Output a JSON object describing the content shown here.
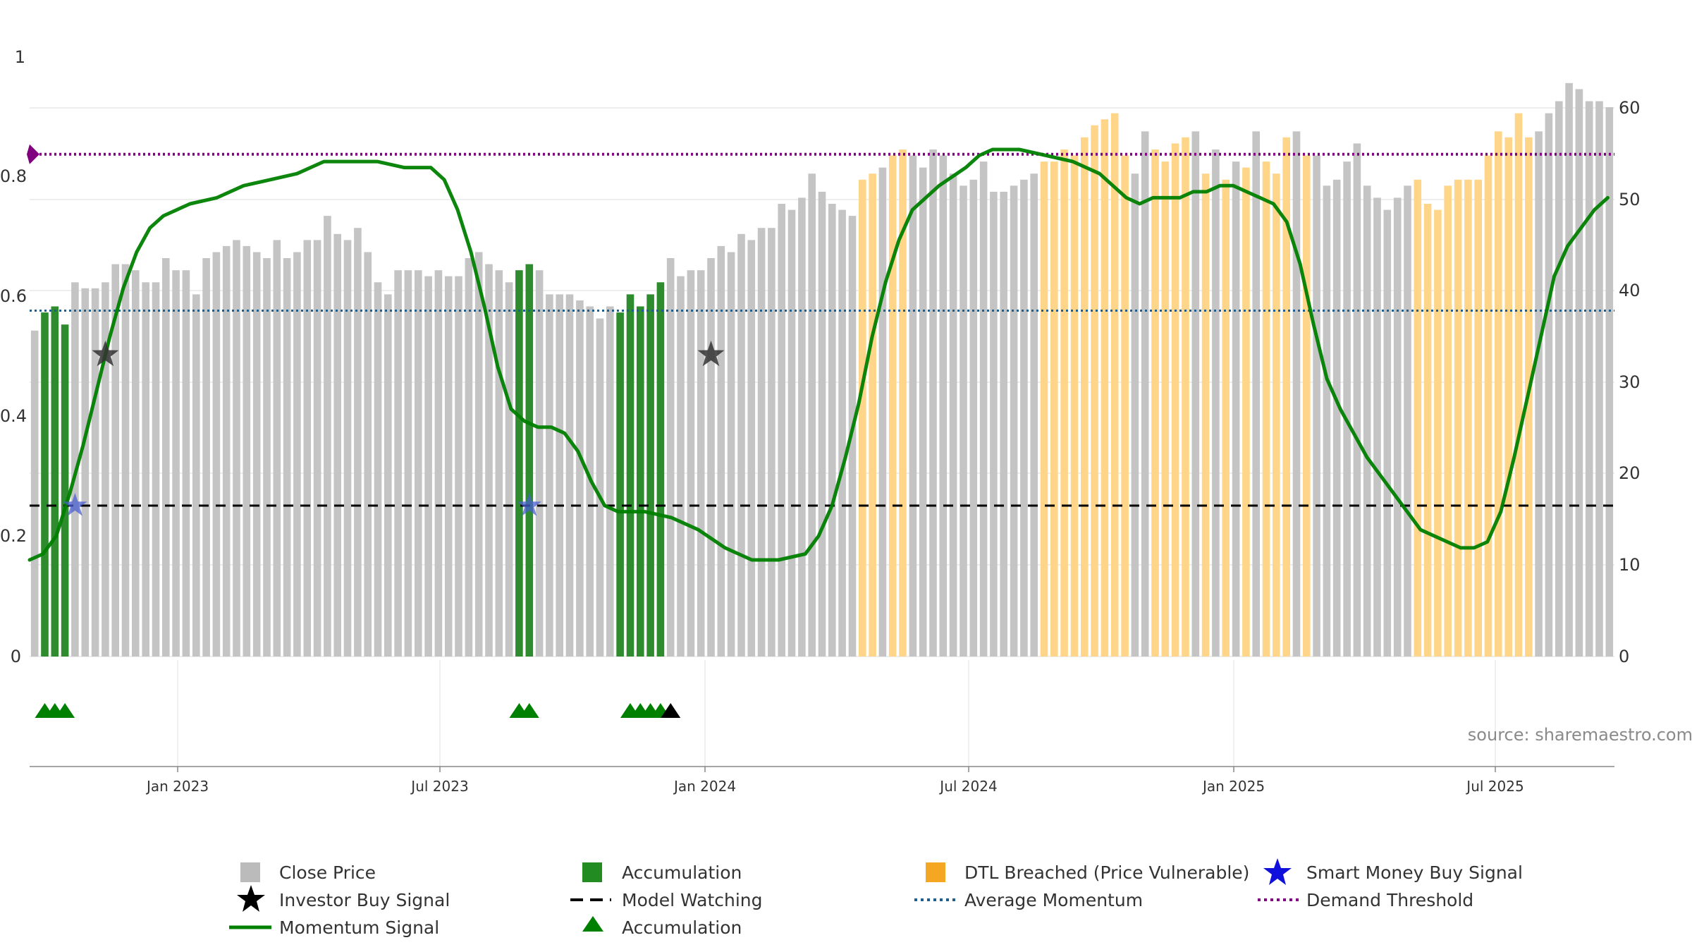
{
  "chart_data": {
    "type": "bar",
    "title": "",
    "source": "source: sharemaestro.com",
    "left_axis": {
      "ticks": [
        "0",
        "0.2",
        "0.4",
        "0.6",
        "0.8",
        "1"
      ],
      "range": [
        0,
        1
      ]
    },
    "right_axis": {
      "ticks": [
        "0",
        "10",
        "20",
        "30",
        "40",
        "50",
        "60"
      ],
      "range": [
        0,
        60
      ]
    },
    "x_axis": {
      "ticks": [
        "Jan 2023",
        "Jul 2023",
        "Jan 2024",
        "Jul 2024",
        "Jan 2025",
        "Jul 2025"
      ]
    },
    "period_start": "2022-09-12",
    "reference_lines": {
      "demand_threshold": 0.832,
      "average_momentum": 0.573,
      "model_watching": 0.25
    },
    "close_price": {
      "bars": [
        0.54,
        0.57,
        0.58,
        0.55,
        0.62,
        0.61,
        0.61,
        0.62,
        0.65,
        0.65,
        0.64,
        0.62,
        0.62,
        0.66,
        0.64,
        0.64,
        0.6,
        0.66,
        0.67,
        0.68,
        0.69,
        0.68,
        0.67,
        0.66,
        0.69,
        0.66,
        0.67,
        0.69,
        0.69,
        0.73,
        0.7,
        0.69,
        0.71,
        0.67,
        0.62,
        0.6,
        0.64,
        0.64,
        0.64,
        0.63,
        0.64,
        0.63,
        0.63,
        0.66,
        0.67,
        0.65,
        0.64,
        0.62,
        0.64,
        0.65,
        0.64,
        0.6,
        0.6,
        0.6,
        0.59,
        0.58,
        0.56,
        0.58,
        0.57,
        0.6,
        0.58,
        0.6,
        0.62,
        0.66,
        0.63,
        0.64,
        0.64,
        0.66,
        0.68,
        0.67,
        0.7,
        0.69,
        0.71,
        0.71,
        0.75,
        0.74,
        0.76,
        0.8,
        0.77,
        0.75,
        0.74,
        0.73,
        0.79,
        0.8,
        0.81,
        0.83,
        0.84,
        0.83,
        0.81,
        0.84,
        0.83,
        0.8,
        0.78,
        0.79,
        0.82,
        0.77,
        0.77,
        0.78,
        0.79,
        0.8,
        0.82,
        0.82,
        0.84,
        0.83,
        0.86,
        0.88,
        0.89,
        0.9,
        0.83,
        0.8,
        0.87,
        0.84,
        0.82,
        0.85,
        0.86,
        0.87,
        0.8,
        0.84,
        0.79,
        0.82,
        0.81,
        0.87,
        0.82,
        0.8,
        0.86,
        0.87,
        0.83,
        0.83,
        0.78,
        0.79,
        0.82,
        0.85,
        0.78,
        0.76,
        0.74,
        0.76,
        0.78,
        0.79,
        0.75,
        0.74,
        0.78,
        0.79,
        0.79,
        0.79,
        0.83,
        0.87,
        0.86,
        0.9,
        0.86,
        0.87,
        0.9,
        0.92,
        0.95,
        0.94,
        0.92,
        0.92,
        0.91
      ],
      "accumulation_bar_indices": [
        1,
        2,
        3,
        48,
        49,
        58,
        59,
        60,
        61,
        62
      ],
      "dtl_breached_bar_indices": [
        82,
        83,
        85,
        86,
        100,
        101,
        102,
        103,
        104,
        105,
        106,
        107,
        108,
        111,
        112,
        113,
        114,
        116,
        118,
        120,
        122,
        123,
        124,
        126,
        137,
        138,
        139,
        140,
        141,
        142,
        143,
        144,
        145,
        146,
        147,
        148
      ]
    },
    "momentum_signal": [
      [
        0.0,
        0.16
      ],
      [
        0.01,
        0.17
      ],
      [
        0.02,
        0.2
      ],
      [
        0.03,
        0.27
      ],
      [
        0.04,
        0.35
      ],
      [
        0.05,
        0.44
      ],
      [
        0.06,
        0.53
      ],
      [
        0.07,
        0.61
      ],
      [
        0.08,
        0.67
      ],
      [
        0.09,
        0.71
      ],
      [
        0.1,
        0.73
      ],
      [
        0.12,
        0.75
      ],
      [
        0.14,
        0.76
      ],
      [
        0.16,
        0.78
      ],
      [
        0.18,
        0.79
      ],
      [
        0.2,
        0.8
      ],
      [
        0.22,
        0.82
      ],
      [
        0.24,
        0.82
      ],
      [
        0.26,
        0.82
      ],
      [
        0.28,
        0.81
      ],
      [
        0.3,
        0.81
      ],
      [
        0.31,
        0.79
      ],
      [
        0.32,
        0.74
      ],
      [
        0.33,
        0.67
      ],
      [
        0.34,
        0.58
      ],
      [
        0.35,
        0.48
      ],
      [
        0.36,
        0.41
      ],
      [
        0.37,
        0.39
      ],
      [
        0.38,
        0.38
      ],
      [
        0.39,
        0.38
      ],
      [
        0.4,
        0.37
      ],
      [
        0.41,
        0.34
      ],
      [
        0.42,
        0.29
      ],
      [
        0.43,
        0.25
      ],
      [
        0.44,
        0.24
      ],
      [
        0.45,
        0.24
      ],
      [
        0.46,
        0.24
      ],
      [
        0.48,
        0.23
      ],
      [
        0.5,
        0.21
      ],
      [
        0.52,
        0.18
      ],
      [
        0.54,
        0.16
      ],
      [
        0.56,
        0.16
      ],
      [
        0.58,
        0.17
      ],
      [
        0.59,
        0.2
      ],
      [
        0.6,
        0.25
      ],
      [
        0.61,
        0.33
      ],
      [
        0.62,
        0.42
      ],
      [
        0.63,
        0.53
      ],
      [
        0.64,
        0.62
      ],
      [
        0.65,
        0.69
      ],
      [
        0.66,
        0.74
      ],
      [
        0.68,
        0.78
      ],
      [
        0.7,
        0.81
      ],
      [
        0.71,
        0.83
      ],
      [
        0.72,
        0.84
      ],
      [
        0.74,
        0.84
      ],
      [
        0.76,
        0.83
      ],
      [
        0.78,
        0.82
      ],
      [
        0.8,
        0.8
      ],
      [
        0.81,
        0.78
      ],
      [
        0.82,
        0.76
      ],
      [
        0.83,
        0.75
      ],
      [
        0.84,
        0.76
      ],
      [
        0.86,
        0.76
      ],
      [
        0.87,
        0.77
      ],
      [
        0.88,
        0.77
      ],
      [
        0.89,
        0.78
      ],
      [
        0.9,
        0.78
      ],
      [
        0.91,
        0.77
      ],
      [
        0.92,
        0.76
      ],
      [
        0.93,
        0.75
      ],
      [
        0.94,
        0.72
      ],
      [
        0.95,
        0.65
      ],
      [
        0.96,
        0.55
      ],
      [
        0.97,
        0.46
      ],
      [
        0.98,
        0.41
      ],
      [
        0.99,
        0.37
      ],
      [
        1.0,
        0.33
      ],
      [
        1.01,
        0.3
      ],
      [
        1.02,
        0.27
      ],
      [
        1.03,
        0.24
      ],
      [
        1.04,
        0.21
      ],
      [
        1.05,
        0.2
      ],
      [
        1.06,
        0.19
      ],
      [
        1.07,
        0.18
      ],
      [
        1.08,
        0.18
      ],
      [
        1.09,
        0.19
      ],
      [
        1.1,
        0.24
      ],
      [
        1.11,
        0.33
      ],
      [
        1.12,
        0.43
      ],
      [
        1.13,
        0.53
      ],
      [
        1.14,
        0.63
      ],
      [
        1.15,
        0.68
      ],
      [
        1.16,
        0.71
      ],
      [
        1.17,
        0.74
      ],
      [
        1.18,
        0.76
      ]
    ],
    "series": [
      {
        "name": "Close Price",
        "color": "#bdbdbd",
        "style": "bar"
      },
      {
        "name": "Accumulation",
        "color": "#228b22",
        "style": "bar"
      },
      {
        "name": "DTL Breached (Price Vulnerable)",
        "color": "#ffd080",
        "style": "bar"
      },
      {
        "name": "Smart Money Buy Signal",
        "color": "#1f1fcc",
        "style": "star"
      },
      {
        "name": "Investor Buy Signal",
        "color": "#000000",
        "style": "star"
      },
      {
        "name": "Model Watching",
        "color": "#000000",
        "style": "dashed-line"
      },
      {
        "name": "Average Momentum",
        "color": "#1f5f8f",
        "style": "dotted-line"
      },
      {
        "name": "Demand Threshold",
        "color": "#800080",
        "style": "dotted-line"
      },
      {
        "name": "Momentum Signal",
        "color": "#008000",
        "style": "line"
      },
      {
        "name": "Accumulation",
        "color": "#008000",
        "style": "triangle"
      }
    ],
    "investor_buy_signals": [
      {
        "bar": 7,
        "value": 0.5
      },
      {
        "bar": 67,
        "value": 0.5
      }
    ],
    "smart_money_buy_signals": [
      {
        "bar": 4,
        "value": 0.25
      },
      {
        "bar": 49,
        "value": 0.25
      }
    ],
    "accumulation_markers": {
      "green_bar_indices": [
        1,
        2,
        3,
        48,
        49,
        59,
        60,
        61,
        62
      ],
      "black_bar_indices": [
        63
      ]
    }
  },
  "legend": [
    {
      "label": "Close Price",
      "color": "#bbbbbb",
      "icon": "square"
    },
    {
      "label": "Accumulation",
      "color": "#228b22",
      "icon": "square"
    },
    {
      "label": "DTL Breached (Price Vulnerable)",
      "color": "#f5a623",
      "icon": "square"
    },
    {
      "label": "Smart Money Buy Signal",
      "color": "#1010dd",
      "icon": "star"
    },
    {
      "label": "Investor Buy Signal",
      "color": "#000000",
      "icon": "star"
    },
    {
      "label": "Model Watching",
      "color": "#000000",
      "icon": "dashed-line"
    },
    {
      "label": "Average Momentum",
      "color": "#1f5f8f",
      "icon": "dotted-line"
    },
    {
      "label": "Demand Threshold",
      "color": "#800080",
      "icon": "dotted-line"
    },
    {
      "label": "Momentum Signal",
      "color": "#008000",
      "icon": "solid-line"
    },
    {
      "label": "Accumulation",
      "color": "#008000",
      "icon": "triangle"
    }
  ]
}
